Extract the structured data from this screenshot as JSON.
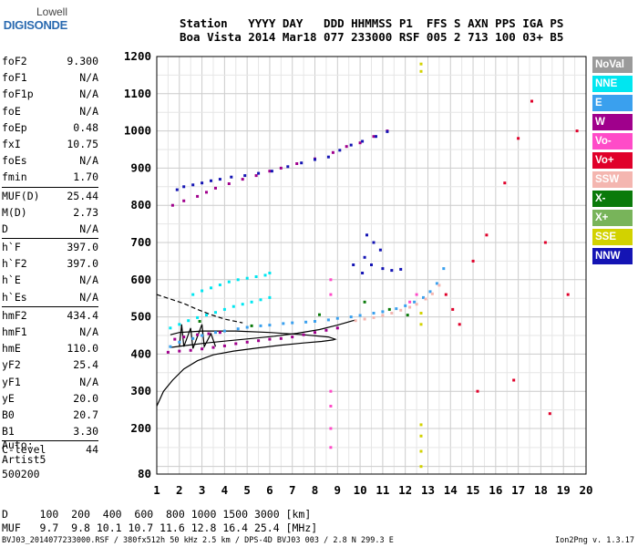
{
  "logo": {
    "line1": "Lowell",
    "line2": "DIGISONDE"
  },
  "header": {
    "line1": "Station   YYYY DAY   DDD HHMMSS P1  FFS S AXN PPS IGA PS",
    "line2": "Boa Vista 2014 Mar18 077 233000 RSF 005 2 713 100 03+ B5"
  },
  "params": [
    {
      "name": "foF2",
      "value": "9.300"
    },
    {
      "name": "foF1",
      "value": "N/A"
    },
    {
      "name": "foF1p",
      "value": "N/A"
    },
    {
      "name": "foE",
      "value": "N/A"
    },
    {
      "name": "foEp",
      "value": "0.48"
    },
    {
      "name": "fxI",
      "value": "10.75"
    },
    {
      "name": "foEs",
      "value": "N/A"
    },
    {
      "name": "fmin",
      "value": "1.70"
    },
    {
      "name": "MUF(D)",
      "value": "25.44"
    },
    {
      "name": "M(D)",
      "value": "2.73"
    },
    {
      "name": "D",
      "value": "N/A"
    },
    {
      "name": "h`F",
      "value": "397.0"
    },
    {
      "name": "h`F2",
      "value": "397.0"
    },
    {
      "name": "h`E",
      "value": "N/A"
    },
    {
      "name": "h`Es",
      "value": "N/A"
    },
    {
      "name": "hmF2",
      "value": "434.4"
    },
    {
      "name": "hmF1",
      "value": "N/A"
    },
    {
      "name": "hmE",
      "value": "110.0"
    },
    {
      "name": "yF2",
      "value": "25.4"
    },
    {
      "name": "yF1",
      "value": "N/A"
    },
    {
      "name": "yE",
      "value": "20.0"
    },
    {
      "name": "B0",
      "value": "20.7"
    },
    {
      "name": "B1",
      "value": "3.30"
    },
    {
      "name": "C-level",
      "value": "44"
    }
  ],
  "auto": {
    "line1": "Auto:",
    "line2": "Artist5",
    "line3": "500200"
  },
  "legend": [
    {
      "label": "NoVal",
      "color": "#9a9a9a"
    },
    {
      "label": "NNE",
      "color": "#00e6f0"
    },
    {
      "label": "E",
      "color": "#3aa0ee"
    },
    {
      "label": "W",
      "color": "#a0008c"
    },
    {
      "label": "Vo-",
      "color": "#ff4bc8"
    },
    {
      "label": "Vo+",
      "color": "#e0002a"
    },
    {
      "label": "SSW",
      "color": "#f4b6b0"
    },
    {
      "label": "X-",
      "color": "#0a7a0a"
    },
    {
      "label": "X+",
      "color": "#78b45a"
    },
    {
      "label": "SSE",
      "color": "#d2d200"
    },
    {
      "label": "NNW",
      "color": "#1414b4"
    }
  ],
  "footer": {
    "line1": "D     100  200  400  600  800 1000 1500 3000 [km]",
    "line2": "MUF   9.7  9.8 10.1 10.7 11.6 12.8 16.4 25.4 [MHz]"
  },
  "bottom_line": "BVJ03_2014077233000.RSF / 380fx512h 50 kHz 2.5 km / DPS-4D BVJ03 003 / 2.8 N 299.3 E",
  "version": "Ion2Png v. 1.3.17",
  "chart_data": {
    "type": "scatter",
    "title": "",
    "xlabel": "",
    "ylabel": "",
    "xlim": [
      1,
      20
    ],
    "ylim": [
      80,
      1200
    ],
    "x_ticks": [
      1,
      2,
      3,
      4,
      5,
      6,
      7,
      8,
      9,
      10,
      11,
      12,
      13,
      14,
      15,
      16,
      17,
      18,
      19,
      20
    ],
    "y_ticks": [
      80,
      200,
      300,
      400,
      500,
      600,
      700,
      800,
      900,
      1000,
      1100,
      1200
    ],
    "grid": true,
    "series": [
      {
        "name": "E",
        "color": "#3aa0ee",
        "points": [
          [
            1.6,
            420
          ],
          [
            2,
            432
          ],
          [
            2.6,
            442
          ],
          [
            3,
            450
          ],
          [
            3.6,
            458
          ],
          [
            4,
            462
          ],
          [
            4.6,
            468
          ],
          [
            5,
            472
          ],
          [
            5.6,
            476
          ],
          [
            6,
            478
          ],
          [
            6.6,
            482
          ],
          [
            7,
            484
          ],
          [
            7.6,
            486
          ],
          [
            8,
            488
          ],
          [
            8.6,
            492
          ],
          [
            9,
            496
          ],
          [
            9.6,
            500
          ],
          [
            10,
            504
          ],
          [
            10.6,
            510
          ],
          [
            11,
            514
          ],
          [
            11.6,
            522
          ],
          [
            12,
            530
          ],
          [
            12.4,
            540
          ],
          [
            12.8,
            552
          ],
          [
            13.1,
            568
          ],
          [
            13.4,
            590
          ],
          [
            13.7,
            630
          ]
        ]
      },
      {
        "name": "W",
        "color": "#a0008c",
        "points": [
          [
            1.5,
            405
          ],
          [
            2,
            408
          ],
          [
            2.5,
            410
          ],
          [
            3,
            414
          ],
          [
            3.5,
            418
          ],
          [
            4,
            422
          ],
          [
            4.5,
            428
          ],
          [
            5,
            432
          ],
          [
            5.5,
            436
          ],
          [
            6,
            440
          ],
          [
            6.5,
            442
          ],
          [
            7,
            446
          ],
          [
            7.5,
            452
          ],
          [
            8,
            458
          ],
          [
            8.5,
            464
          ],
          [
            9,
            470
          ],
          [
            1.8,
            440
          ],
          [
            2.2,
            446
          ],
          [
            2.8,
            452
          ],
          [
            3.3,
            455
          ],
          [
            3.8,
            458
          ],
          [
            1.7,
            800
          ],
          [
            2.2,
            812
          ],
          [
            2.8,
            824
          ],
          [
            3.2,
            835
          ],
          [
            3.6,
            846
          ],
          [
            4.2,
            858
          ],
          [
            4.8,
            870
          ],
          [
            5.4,
            880
          ],
          [
            6,
            892
          ],
          [
            6.5,
            900
          ],
          [
            7.2,
            912
          ],
          [
            8,
            925
          ],
          [
            8.8,
            942
          ],
          [
            9.4,
            958
          ],
          [
            10,
            968
          ],
          [
            10.6,
            985
          ],
          [
            11.2,
            1000
          ]
        ]
      },
      {
        "name": "NNE",
        "color": "#00e6f0",
        "points": [
          [
            1.6,
            470
          ],
          [
            2,
            480
          ],
          [
            2.4,
            490
          ],
          [
            2.8,
            498
          ],
          [
            3.2,
            505
          ],
          [
            3.6,
            512
          ],
          [
            4,
            520
          ],
          [
            4.4,
            528
          ],
          [
            4.8,
            534
          ],
          [
            5.2,
            540
          ],
          [
            5.6,
            546
          ],
          [
            6,
            552
          ],
          [
            2.6,
            560
          ],
          [
            3,
            570
          ],
          [
            3.4,
            578
          ],
          [
            3.8,
            586
          ],
          [
            4.2,
            594
          ],
          [
            4.6,
            600
          ],
          [
            5,
            604
          ],
          [
            5.4,
            608
          ],
          [
            5.8,
            612
          ],
          [
            6,
            618
          ]
        ]
      },
      {
        "name": "NNW",
        "color": "#1414b4",
        "points": [
          [
            1.9,
            842
          ],
          [
            2.2,
            850
          ],
          [
            2.6,
            855
          ],
          [
            3,
            860
          ],
          [
            3.4,
            866
          ],
          [
            3.8,
            870
          ],
          [
            4.3,
            876
          ],
          [
            4.9,
            880
          ],
          [
            5.5,
            886
          ],
          [
            6.1,
            892
          ],
          [
            6.8,
            904
          ],
          [
            7.4,
            914
          ],
          [
            8,
            923
          ],
          [
            8.6,
            930
          ],
          [
            9.1,
            948
          ],
          [
            9.6,
            962
          ],
          [
            10.1,
            972
          ],
          [
            10.7,
            985
          ],
          [
            11.2,
            998
          ],
          [
            10.3,
            720
          ],
          [
            10.6,
            700
          ],
          [
            10.9,
            680
          ],
          [
            10.2,
            660
          ],
          [
            10.5,
            640
          ],
          [
            11,
            630
          ],
          [
            11.4,
            625
          ],
          [
            11.8,
            628
          ],
          [
            9.7,
            640
          ],
          [
            10.1,
            618
          ]
        ]
      },
      {
        "name": "SSW",
        "color": "#f4b6b0",
        "points": [
          [
            9.8,
            490
          ],
          [
            10.2,
            494
          ],
          [
            10.6,
            498
          ],
          [
            11,
            504
          ],
          [
            11.4,
            510
          ],
          [
            11.8,
            518
          ],
          [
            12.2,
            526
          ],
          [
            12.5,
            534
          ],
          [
            12.9,
            548
          ],
          [
            13.2,
            562
          ],
          [
            13.5,
            585
          ]
        ]
      },
      {
        "name": "Vo+",
        "color": "#e0002a",
        "points": [
          [
            13.8,
            560
          ],
          [
            14.1,
            520
          ],
          [
            14.4,
            480
          ],
          [
            15,
            650
          ],
          [
            15.6,
            720
          ],
          [
            16.4,
            860
          ],
          [
            17,
            980
          ],
          [
            17.6,
            1080
          ],
          [
            18.2,
            700
          ],
          [
            19.2,
            560
          ],
          [
            19.6,
            1000
          ],
          [
            16.8,
            330
          ],
          [
            18.4,
            240
          ],
          [
            15.2,
            300
          ]
        ]
      },
      {
        "name": "X-",
        "color": "#0a7a0a",
        "points": [
          [
            10.2,
            540
          ],
          [
            11.3,
            520
          ],
          [
            12.1,
            505
          ],
          [
            2.9,
            488
          ],
          [
            5.2,
            476
          ],
          [
            8.2,
            506
          ]
        ]
      },
      {
        "name": "SSE",
        "color": "#d2d200",
        "points": [
          [
            12.7,
            1180
          ],
          [
            12.7,
            1160
          ],
          [
            12.7,
            210
          ],
          [
            12.7,
            180
          ],
          [
            12.7,
            140
          ],
          [
            12.7,
            100
          ],
          [
            12.7,
            510
          ],
          [
            12.7,
            480
          ]
        ]
      },
      {
        "name": "Vo-",
        "color": "#ff4bc8",
        "points": [
          [
            8.7,
            600
          ],
          [
            8.7,
            560
          ],
          [
            8.7,
            300
          ],
          [
            8.7,
            260
          ],
          [
            8.7,
            200
          ],
          [
            8.7,
            150
          ],
          [
            12.2,
            540
          ],
          [
            12.5,
            560
          ]
        ]
      }
    ],
    "lines": [
      {
        "name": "profile",
        "color": "#000000",
        "points": [
          [
            1.0,
            260
          ],
          [
            1.3,
            300
          ],
          [
            1.7,
            330
          ],
          [
            2.2,
            360
          ],
          [
            2.8,
            382
          ],
          [
            3.5,
            398
          ],
          [
            4.4,
            408
          ],
          [
            5.4,
            416
          ],
          [
            6.5,
            424
          ],
          [
            7.5,
            430
          ],
          [
            8.3,
            434
          ],
          [
            8.8,
            438
          ],
          [
            8.9,
            440
          ],
          [
            8.6,
            446
          ],
          [
            7.5,
            452
          ],
          [
            6,
            458
          ],
          [
            4.5,
            462
          ],
          [
            3,
            462
          ],
          [
            2,
            458
          ],
          [
            1.6,
            452
          ]
        ]
      },
      {
        "name": "trace-lower",
        "color": "#000000",
        "points": [
          [
            1.6,
            418
          ],
          [
            2.4,
            424
          ],
          [
            3.2,
            430
          ],
          [
            4.2,
            436
          ],
          [
            5.2,
            442
          ],
          [
            6.2,
            448
          ],
          [
            7.2,
            456
          ],
          [
            8.2,
            466
          ],
          [
            9,
            478
          ],
          [
            9.8,
            492
          ]
        ]
      },
      {
        "name": "dashed",
        "color": "#000000",
        "dash": true,
        "points": [
          [
            1.0,
            560
          ],
          [
            1.6,
            548
          ],
          [
            2.2,
            536
          ],
          [
            2.8,
            520
          ],
          [
            3.4,
            506
          ],
          [
            4,
            494
          ],
          [
            4.8,
            484
          ]
        ]
      },
      {
        "name": "spike",
        "color": "#000000",
        "points": [
          [
            2,
            420
          ],
          [
            2.1,
            480
          ],
          [
            2.2,
            420
          ],
          [
            2.5,
            470
          ],
          [
            2.6,
            415
          ],
          [
            3,
            480
          ],
          [
            3.1,
            420
          ],
          [
            3.4,
            455
          ],
          [
            3.6,
            420
          ]
        ]
      }
    ]
  }
}
